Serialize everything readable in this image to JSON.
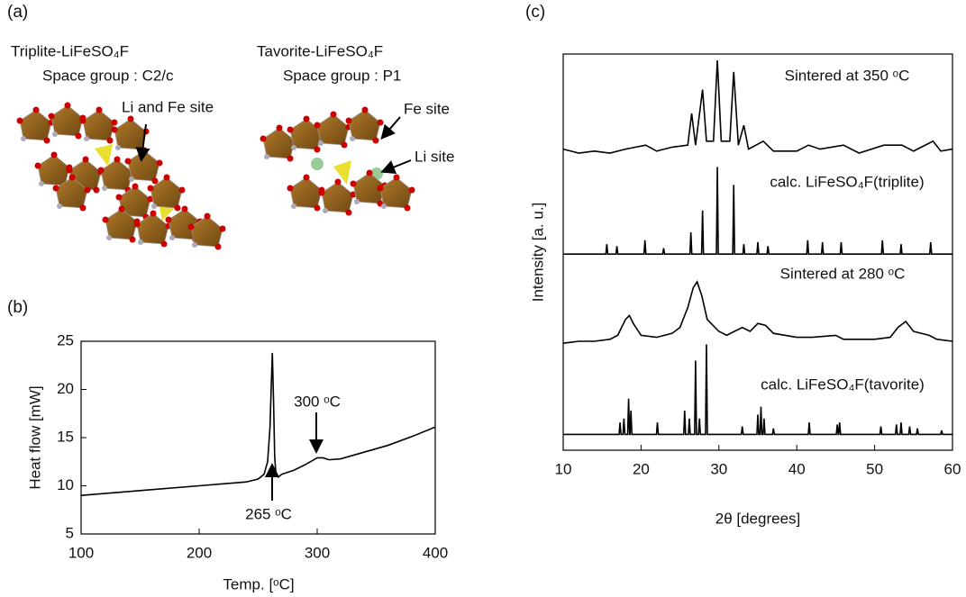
{
  "figure": {
    "panel_labels": [
      "(a)",
      "(b)",
      "(c)"
    ],
    "structures": [
      {
        "name": "Triplite-LiFeSO₄F",
        "space_group": "Space group : C2/c",
        "sites": [
          "Li and Fe site"
        ]
      },
      {
        "name": "Tavorite-LiFeSO₄F",
        "space_group": "Space group : P1",
        "sites": [
          "Fe site",
          "Li site"
        ]
      }
    ]
  },
  "chart_data": [
    {
      "type": "line",
      "x_label": "Temp. [ᵒC]",
      "y_label": "Heat flow [mW]",
      "color": "#000000",
      "x": [
        100,
        150,
        200,
        240,
        250,
        255,
        258,
        260,
        261,
        262,
        263,
        264,
        265,
        267,
        270,
        280,
        290,
        300,
        305,
        310,
        320,
        340,
        360,
        380,
        400
      ],
      "values": [
        9,
        9.5,
        10,
        10.4,
        10.7,
        11.2,
        12.5,
        16,
        20,
        23.8,
        19,
        13,
        11.3,
        10.9,
        11.2,
        11.6,
        12.2,
        12.9,
        12.9,
        12.7,
        12.8,
        13.5,
        14.2,
        15.1,
        16.1
      ],
      "xlim": [
        100,
        400
      ],
      "xticks": [
        100,
        200,
        300,
        400
      ],
      "ylim": [
        5,
        25
      ],
      "yticks": [
        5,
        10,
        15,
        20,
        25
      ],
      "annotations": [
        "265 ᵒC",
        "300 ᵒC"
      ]
    },
    {
      "type": "line",
      "x_label": "2θ [degrees]",
      "y_label": "Intensity [a. u.]",
      "xlim": [
        10,
        60
      ],
      "xticks": [
        10,
        20,
        30,
        40,
        50,
        60
      ],
      "ylim": [
        0,
        100
      ],
      "series": [
        {
          "name": "Sintered at 350 ᵒC",
          "color": "#000000",
          "x": [
            10,
            12,
            14,
            16,
            18,
            20.6,
            22,
            24,
            26,
            26.5,
            27,
            27.9,
            28.4,
            29.3,
            29.8,
            30.3,
            31.4,
            31.9,
            32.5,
            33.2,
            33.8,
            35.7,
            37,
            40,
            41.5,
            43,
            46,
            48,
            51.2,
            53.5,
            55,
            57.5,
            58.5,
            60
          ],
          "values": [
            76,
            75,
            75.5,
            75,
            76,
            77,
            75.5,
            76.5,
            77,
            85,
            77,
            91,
            78,
            78,
            98.4,
            78,
            78,
            95.5,
            77,
            82,
            76,
            78,
            75.5,
            75.5,
            77,
            76,
            77,
            75,
            77,
            77,
            75.5,
            78,
            75.5,
            76
          ]
        },
        {
          "name": "calc. LiFeSO₄F(triplite)",
          "color": "#000000",
          "x": [
            10,
            15.48,
            15.6,
            15.72,
            16.78,
            16.9,
            17.02,
            20.38,
            20.5,
            20.62,
            22.78,
            22.9,
            23.02,
            26.28,
            26.4,
            26.52,
            27.78,
            27.9,
            28.02,
            29.68,
            29.8,
            29.92,
            31.78,
            31.9,
            32.02,
            33.08,
            33.2,
            33.32,
            34.88,
            35.0,
            35.12,
            36.18,
            36.3,
            36.42,
            41.28,
            41.4,
            41.52,
            43.18,
            43.3,
            43.42,
            45.58,
            45.7,
            45.82,
            50.88,
            51.0,
            51.12,
            53.28,
            53.4,
            53.52,
            57.08,
            57.2,
            57.32,
            60
          ],
          "values": [
            49.5,
            49.5,
            52,
            49.5,
            49.5,
            51.5,
            49.5,
            49.5,
            53,
            49.5,
            49.5,
            51,
            49.5,
            49.5,
            55,
            49.5,
            49.5,
            60.5,
            49.5,
            49.5,
            71.5,
            49.5,
            49.5,
            67,
            49.5,
            49.5,
            52,
            49.5,
            49.5,
            52.5,
            49.5,
            49.5,
            51.5,
            49.5,
            49.5,
            53,
            49.5,
            49.5,
            52.5,
            49.5,
            49.5,
            52.5,
            49.5,
            49.5,
            53,
            49.5,
            49.5,
            52,
            49.5,
            49.5,
            52.5,
            49.5,
            49.5
          ]
        },
        {
          "name": "Sintered at 280 ᵒC",
          "color": "#000000",
          "x": [
            10,
            12,
            14,
            16,
            17,
            18,
            18.5,
            19,
            20,
            22,
            24,
            25,
            26,
            26.7,
            27.2,
            27.8,
            28.5,
            30,
            31,
            33,
            34,
            35,
            36,
            37,
            40,
            42,
            45,
            46,
            50,
            52,
            53,
            54,
            55,
            57,
            58,
            60
          ],
          "values": [
            27,
            27.5,
            27.5,
            28,
            29,
            33,
            34,
            32,
            29,
            28.5,
            29.5,
            31,
            36,
            41,
            42.5,
            39,
            33,
            30,
            29,
            31,
            30,
            32,
            31.5,
            29.5,
            28.5,
            28.5,
            29,
            28,
            28,
            28.5,
            31,
            32.5,
            30,
            29,
            28,
            27.5
          ]
        },
        {
          "name": "calc. LiFeSO₄F(tavorite)",
          "color": "#000000",
          "x": [
            10,
            17.18,
            17.3,
            17.42,
            17.68,
            17.8,
            17.92,
            18.28,
            18.4,
            18.52,
            18.58,
            18.7,
            18.82,
            21.98,
            22.1,
            22.22,
            25.48,
            25.6,
            25.72,
            26.08,
            26.2,
            26.32,
            26.88,
            27.0,
            27.12,
            27.38,
            27.5,
            27.62,
            28.28,
            28.4,
            28.52,
            32.88,
            33.0,
            33.12,
            34.88,
            35.0,
            35.12,
            35.28,
            35.4,
            35.52,
            35.68,
            35.8,
            35.92,
            36.88,
            37.0,
            37.12,
            41.48,
            41.6,
            41.72,
            45.08,
            45.2,
            45.32,
            45.38,
            45.5,
            45.62,
            50.68,
            50.8,
            50.92,
            52.68,
            52.8,
            52.92,
            53.28,
            53.4,
            53.52,
            54.38,
            54.5,
            54.62,
            55.38,
            55.5,
            55.62,
            58.48,
            58.6,
            58.72,
            60
          ],
          "values": [
            4,
            4,
            7,
            4,
            4,
            8,
            4,
            4,
            13,
            4,
            4,
            10,
            4,
            4,
            7,
            4,
            4,
            10,
            4,
            4,
            8,
            4,
            4,
            22.6,
            4,
            4,
            8,
            4,
            4,
            26.7,
            4,
            4,
            6,
            4,
            4,
            9,
            4,
            4,
            11,
            4,
            4,
            8,
            4,
            4,
            5.5,
            4,
            4,
            7,
            4,
            4,
            6.5,
            4,
            4,
            7,
            4,
            4,
            6,
            4,
            4,
            6.5,
            4,
            4,
            7,
            4,
            4,
            6,
            4,
            4,
            5.5,
            4,
            4,
            5,
            4,
            4
          ]
        }
      ]
    }
  ]
}
